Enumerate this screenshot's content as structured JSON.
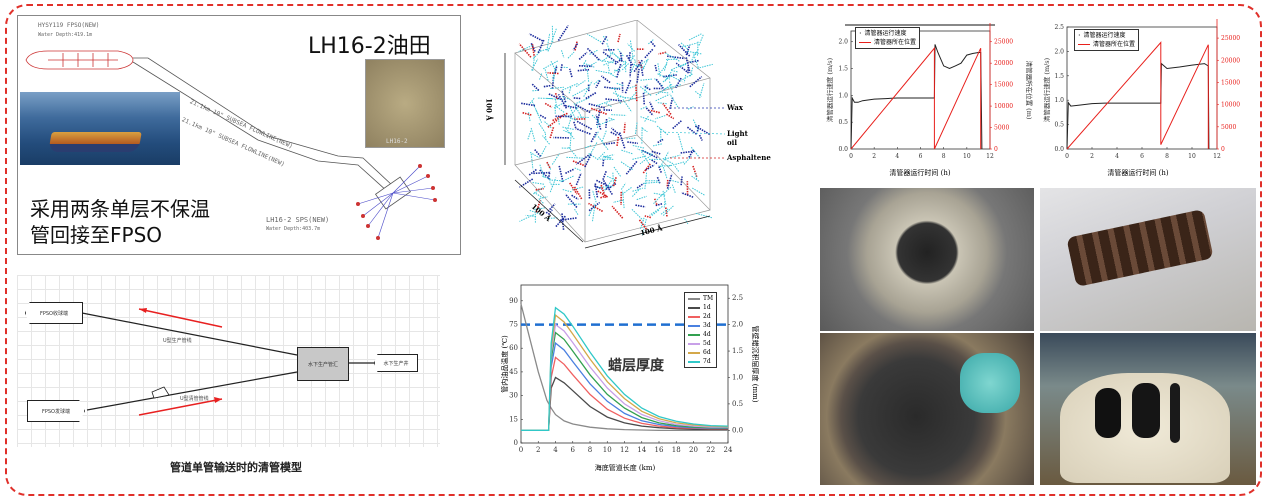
{
  "colors": {
    "frame": "#e0302a",
    "wax_dashed_line": "#1f6fd1"
  },
  "field_panel": {
    "fpso_name": "HYSY119 FPSO(NEW)",
    "fpso_depth": "Water Depth:419.1m",
    "field_title": "LH16-2油田",
    "flowline_1": "21.1km 10\" SUBSEA FLOWLINE(NEW)",
    "flowline_2": "21.1km 10\" SUBSEA FLOWLINE(NEW)",
    "sps_name": "LH16-2 SPS(NEW)",
    "sps_depth": "Water Depth:403.7m",
    "seabed_photo_label": "LH16-2",
    "summary_line1": "采用两条单层不保温",
    "summary_line2": "管回接至FPSO"
  },
  "pigging_model": {
    "node_receiver": "FPSO收球端",
    "node_launcher": "FPSO发球端",
    "node_manifold": "水下生产管汇",
    "node_well": "水下生产井",
    "line_production": "U型生产管线",
    "line_pigging": "U型清管管线",
    "caption": "管道单管输送时的清管模型"
  },
  "molecular_model": {
    "label_wax": "Wax",
    "label_light_oil": "Light oil",
    "label_asphaltene": "Asphaltene",
    "dim_height": "100 Å",
    "dim_depth": "100 Å",
    "dim_width": "100 Å",
    "colors": {
      "wax": "#1a2a9c",
      "light_oil": "#3cc6d6",
      "asphaltene": "#d42020"
    }
  },
  "photos": [
    "pipeline-end-open",
    "pig-with-discs",
    "wax-in-receiver",
    "wax-in-gloved-hand"
  ],
  "chart_data": [
    {
      "type": "line",
      "title": "",
      "xlabel": "清管器运行时间 (h)",
      "ylabel": "清管器运行速度 (m/s)",
      "ylabel_right": "清管器所在位置 (m)",
      "xlim": [
        0,
        12
      ],
      "xticks": [
        0,
        2,
        4,
        6,
        8,
        10,
        12
      ],
      "ylim": [
        0,
        2.2
      ],
      "yticks": [
        0.0,
        0.5,
        1.0,
        1.5,
        2.0
      ],
      "ylim_right": [
        0,
        27500
      ],
      "yticks_right": [
        0,
        5000,
        10000,
        15000,
        20000,
        25000
      ],
      "legend": "top-left",
      "series": [
        {
          "name": "清管器运行速度",
          "axis": "left",
          "color": "#222222",
          "x": [
            0,
            0.1,
            0.3,
            0.6,
            1,
            2,
            3,
            4,
            5,
            6,
            7.2,
            7.25,
            7.5,
            8,
            8.5,
            9,
            9.5,
            10,
            10.5,
            11,
            11.2,
            11.3
          ],
          "y": [
            0,
            0.95,
            0.87,
            0.87,
            0.9,
            0.93,
            0.94,
            0.95,
            0.95,
            0.95,
            0.95,
            1.95,
            1.8,
            1.55,
            1.5,
            1.55,
            1.6,
            1.75,
            1.78,
            1.8,
            1.8,
            0
          ]
        },
        {
          "name": "清管器所在位置",
          "axis": "right",
          "color": "#e8201c",
          "x": [
            0,
            7.2,
            7.2,
            11.2,
            11.2
          ],
          "y": [
            0,
            23500,
            0,
            23500,
            0
          ]
        }
      ]
    },
    {
      "type": "line",
      "title": "",
      "xlabel": "清管器运行时间 (h)",
      "ylabel": "清管器运行速度 (m/s)",
      "ylabel_right": "清管器所在位置 (m)",
      "xlim": [
        0,
        12
      ],
      "xticks": [
        0,
        2,
        4,
        6,
        8,
        10,
        12
      ],
      "ylim": [
        0,
        2.5
      ],
      "yticks": [
        0.0,
        0.5,
        1.0,
        1.5,
        2.0,
        2.5
      ],
      "ylim_right": [
        0,
        27500
      ],
      "yticks_right": [
        0,
        5000,
        10000,
        15000,
        20000,
        25000
      ],
      "legend": "top-left",
      "series": [
        {
          "name": "清管器运行速度",
          "axis": "left",
          "color": "#222222",
          "x": [
            0,
            0.1,
            0.3,
            1,
            2,
            3,
            4,
            5,
            6,
            7.5,
            7.55,
            8,
            9,
            10,
            11,
            11.3,
            11.35
          ],
          "y": [
            0,
            0.95,
            0.88,
            0.9,
            0.93,
            0.94,
            0.94,
            0.94,
            0.94,
            0.94,
            1.75,
            1.65,
            1.68,
            1.72,
            1.75,
            1.7,
            0
          ]
        },
        {
          "name": "清管器所在位置",
          "axis": "right",
          "color": "#e8201c",
          "x": [
            0,
            7.5,
            7.5,
            11.3,
            11.3
          ],
          "y": [
            0,
            24000,
            1000,
            23500,
            0
          ]
        }
      ]
    },
    {
      "type": "line",
      "title": "",
      "annotation": "蜡层厚度",
      "xlabel": "海底管道长度 (km)",
      "ylabel": "管内油品温度 (℃)",
      "ylabel_right": "管壁蜡沉积层厚度 (mm)",
      "xlim": [
        0,
        24
      ],
      "xticks": [
        0,
        2,
        4,
        6,
        8,
        10,
        12,
        14,
        16,
        18,
        20,
        22,
        24
      ],
      "ylim": [
        0,
        100
      ],
      "yticks": [
        0,
        15,
        30,
        45,
        60,
        75,
        90
      ],
      "ylim_right": [
        -0.24,
        2.75
      ],
      "yticks_right": [
        0.0,
        0.5,
        1.0,
        1.5,
        2.0,
        2.5
      ],
      "reference_line": {
        "axis": "right",
        "value": 2.0,
        "style": "dashed"
      },
      "legend": "top-right",
      "x": [
        0,
        2,
        3,
        3.2,
        3.5,
        4,
        5,
        6,
        8,
        10,
        12,
        14,
        16,
        18,
        20,
        22,
        24
      ],
      "series": [
        {
          "name": "TM",
          "axis": "left",
          "color": "#8a8a8a",
          "y": [
            88,
            45,
            27,
            25,
            22,
            18,
            14,
            12,
            10,
            9,
            8.5,
            8.2,
            8,
            8,
            8,
            8,
            8
          ]
        },
        {
          "name": "1d",
          "axis": "right",
          "color": "#4a4a4a",
          "y": [
            0,
            0,
            0,
            0,
            0.8,
            1.0,
            0.9,
            0.75,
            0.45,
            0.25,
            0.14,
            0.08,
            0.05,
            0.03,
            0.02,
            0.02,
            0.02
          ]
        },
        {
          "name": "2d",
          "axis": "right",
          "color": "#f06060",
          "y": [
            0,
            0,
            0,
            0,
            1.0,
            1.38,
            1.25,
            1.05,
            0.68,
            0.4,
            0.23,
            0.13,
            0.08,
            0.05,
            0.04,
            0.03,
            0.03
          ]
        },
        {
          "name": "3d",
          "axis": "right",
          "color": "#4a80e0",
          "y": [
            0,
            0,
            0,
            0,
            1.2,
            1.65,
            1.52,
            1.3,
            0.88,
            0.55,
            0.32,
            0.18,
            0.11,
            0.07,
            0.05,
            0.04,
            0.04
          ]
        },
        {
          "name": "4d",
          "axis": "right",
          "color": "#33a050",
          "y": [
            0,
            0,
            0,
            0,
            1.35,
            1.85,
            1.72,
            1.5,
            1.05,
            0.68,
            0.42,
            0.24,
            0.14,
            0.09,
            0.06,
            0.05,
            0.05
          ]
        },
        {
          "name": "5d",
          "axis": "right",
          "color": "#c8a0e8",
          "y": [
            0,
            0,
            0,
            0,
            1.45,
            2.0,
            1.88,
            1.66,
            1.2,
            0.8,
            0.5,
            0.3,
            0.18,
            0.11,
            0.08,
            0.06,
            0.06
          ]
        },
        {
          "name": "6d",
          "axis": "right",
          "color": "#d4a84a",
          "y": [
            0,
            0,
            0,
            0,
            1.55,
            2.18,
            2.05,
            1.82,
            1.35,
            0.92,
            0.6,
            0.36,
            0.22,
            0.14,
            0.1,
            0.08,
            0.07
          ]
        },
        {
          "name": "7d",
          "axis": "right",
          "color": "#30c8c8",
          "y": [
            0,
            0,
            0,
            0,
            1.65,
            2.32,
            2.2,
            1.97,
            1.48,
            1.03,
            0.68,
            0.42,
            0.26,
            0.17,
            0.12,
            0.09,
            0.08
          ]
        }
      ]
    }
  ]
}
